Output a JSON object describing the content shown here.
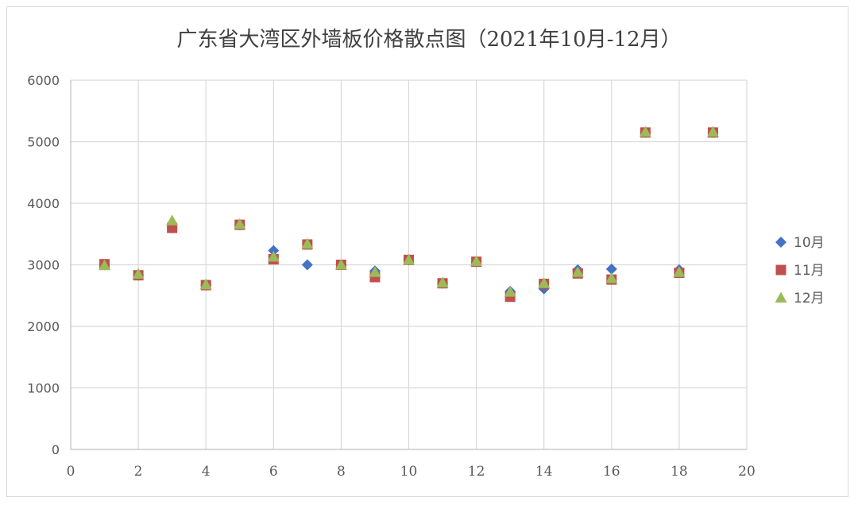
{
  "chart_data": {
    "type": "scatter",
    "title": "广东省大湾区外墙板价格散点图（2021年10月-12月）",
    "xlabel": "",
    "ylabel": "",
    "xlim": [
      0,
      20
    ],
    "ylim": [
      0,
      6000
    ],
    "x_ticks": [
      0,
      2,
      4,
      6,
      8,
      10,
      12,
      14,
      16,
      18,
      20
    ],
    "y_ticks": [
      0,
      1000,
      2000,
      3000,
      4000,
      5000,
      6000
    ],
    "grid": true,
    "legend_position": "right",
    "series": [
      {
        "name": "10月",
        "marker": "diamond",
        "color": "#4472C4",
        "points": [
          [
            1,
            3000
          ],
          [
            2,
            2830
          ],
          [
            3,
            3600
          ],
          [
            4,
            2670
          ],
          [
            5,
            3650
          ],
          [
            6,
            3230
          ],
          [
            7,
            3000
          ],
          [
            8,
            3000
          ],
          [
            9,
            2900
          ],
          [
            10,
            3080
          ],
          [
            11,
            2700
          ],
          [
            12,
            3050
          ],
          [
            13,
            2570
          ],
          [
            14,
            2610
          ],
          [
            15,
            2920
          ],
          [
            16,
            2930
          ],
          [
            17,
            5150
          ],
          [
            18,
            2920
          ],
          [
            19,
            5150
          ]
        ]
      },
      {
        "name": "11月",
        "marker": "square",
        "color": "#C0504D",
        "points": [
          [
            1,
            3010
          ],
          [
            2,
            2830
          ],
          [
            3,
            3600
          ],
          [
            4,
            2670
          ],
          [
            5,
            3650
          ],
          [
            6,
            3090
          ],
          [
            7,
            3330
          ],
          [
            8,
            3000
          ],
          [
            9,
            2800
          ],
          [
            10,
            3080
          ],
          [
            11,
            2700
          ],
          [
            12,
            3050
          ],
          [
            13,
            2480
          ],
          [
            14,
            2690
          ],
          [
            15,
            2860
          ],
          [
            16,
            2760
          ],
          [
            17,
            5150
          ],
          [
            18,
            2870
          ],
          [
            19,
            5150
          ]
        ]
      },
      {
        "name": "12月",
        "marker": "triangle",
        "color": "#9BBB59",
        "points": [
          [
            1,
            2990
          ],
          [
            2,
            2850
          ],
          [
            3,
            3720
          ],
          [
            4,
            2680
          ],
          [
            5,
            3660
          ],
          [
            6,
            3130
          ],
          [
            7,
            3340
          ],
          [
            8,
            3000
          ],
          [
            9,
            2880
          ],
          [
            10,
            3080
          ],
          [
            11,
            2710
          ],
          [
            12,
            3060
          ],
          [
            13,
            2560
          ],
          [
            14,
            2700
          ],
          [
            15,
            2880
          ],
          [
            16,
            2780
          ],
          [
            17,
            5160
          ],
          [
            18,
            2880
          ],
          [
            19,
            5160
          ]
        ]
      }
    ]
  }
}
